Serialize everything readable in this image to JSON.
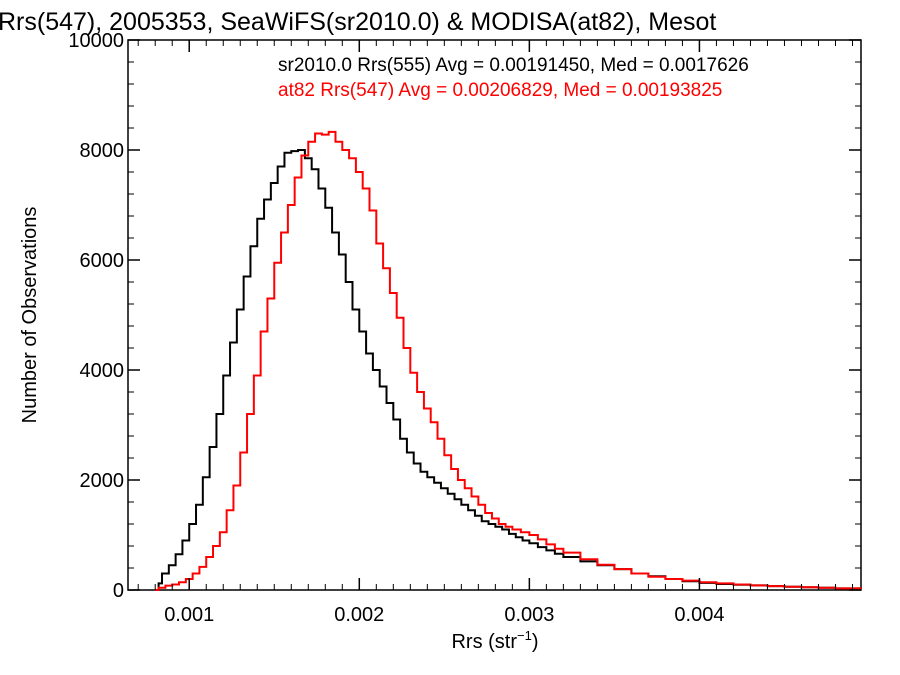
{
  "chart_data": {
    "type": "line",
    "title": "Rrs(547), 2005353, SeaWiFS(sr2010.0) & MODISA(at82), Mesot",
    "xlabel": "Rrs (str",
    "xlabel_sup": "−1",
    "xlabel_close": ")",
    "ylabel": "Number of Observations",
    "xlim": [
      0.00064,
      0.00495
    ],
    "ylim": [
      0,
      10000
    ],
    "x_ticks": [
      0.001,
      0.002,
      0.003,
      0.004
    ],
    "x_tick_labels": [
      "0.001",
      "0.002",
      "0.003",
      "0.004"
    ],
    "y_ticks": [
      0,
      2000,
      4000,
      6000,
      8000,
      10000
    ],
    "y_tick_labels": [
      "0",
      "2000",
      "4000",
      "6000",
      "8000",
      "10000"
    ],
    "grid": false,
    "series": [
      {
        "name": "sr2010.0",
        "label": "sr2010.0 Rrs(555) Avg = 0.00191450, Med = 0.0017626",
        "color": "#000000",
        "points": [
          [
            0.0008,
            0
          ],
          [
            0.00082,
            120
          ],
          [
            0.00084,
            300
          ],
          [
            0.00088,
            450
          ],
          [
            0.00092,
            650
          ],
          [
            0.00096,
            900
          ],
          [
            0.001,
            1200
          ],
          [
            0.00104,
            1550
          ],
          [
            0.00108,
            2050
          ],
          [
            0.00112,
            2600
          ],
          [
            0.00116,
            3200
          ],
          [
            0.0012,
            3900
          ],
          [
            0.00124,
            4500
          ],
          [
            0.00128,
            5100
          ],
          [
            0.00132,
            5700
          ],
          [
            0.00136,
            6250
          ],
          [
            0.0014,
            6750
          ],
          [
            0.00144,
            7100
          ],
          [
            0.00148,
            7400
          ],
          [
            0.00152,
            7700
          ],
          [
            0.00156,
            7950
          ],
          [
            0.0016,
            7980
          ],
          [
            0.00164,
            8000
          ],
          [
            0.00168,
            7850
          ],
          [
            0.00172,
            7650
          ],
          [
            0.00176,
            7300
          ],
          [
            0.0018,
            6950
          ],
          [
            0.00184,
            6500
          ],
          [
            0.00188,
            6100
          ],
          [
            0.00192,
            5600
          ],
          [
            0.00196,
            5100
          ],
          [
            0.002,
            4700
          ],
          [
            0.00204,
            4300
          ],
          [
            0.00208,
            4000
          ],
          [
            0.00212,
            3700
          ],
          [
            0.00216,
            3400
          ],
          [
            0.0022,
            3100
          ],
          [
            0.00224,
            2750
          ],
          [
            0.00228,
            2500
          ],
          [
            0.00232,
            2300
          ],
          [
            0.00236,
            2150
          ],
          [
            0.0024,
            2050
          ],
          [
            0.00244,
            1950
          ],
          [
            0.00248,
            1850
          ],
          [
            0.00252,
            1750
          ],
          [
            0.00256,
            1650
          ],
          [
            0.0026,
            1550
          ],
          [
            0.00264,
            1450
          ],
          [
            0.00268,
            1350
          ],
          [
            0.00272,
            1250
          ],
          [
            0.00276,
            1200
          ],
          [
            0.0028,
            1150
          ],
          [
            0.00284,
            1100
          ],
          [
            0.00288,
            1020
          ],
          [
            0.00292,
            960
          ],
          [
            0.00296,
            900
          ],
          [
            0.003,
            850
          ],
          [
            0.00305,
            780
          ],
          [
            0.0031,
            720
          ],
          [
            0.00315,
            660
          ],
          [
            0.0032,
            600
          ],
          [
            0.0033,
            520
          ],
          [
            0.0034,
            450
          ],
          [
            0.0035,
            380
          ],
          [
            0.0036,
            300
          ],
          [
            0.0037,
            250
          ],
          [
            0.0038,
            200
          ],
          [
            0.0039,
            160
          ],
          [
            0.004,
            130
          ],
          [
            0.0041,
            110
          ],
          [
            0.0042,
            95
          ],
          [
            0.0043,
            85
          ],
          [
            0.0044,
            70
          ],
          [
            0.0045,
            60
          ],
          [
            0.0046,
            50
          ],
          [
            0.0047,
            40
          ],
          [
            0.0048,
            30
          ],
          [
            0.00495,
            20
          ]
        ]
      },
      {
        "name": "at82",
        "label": "at82 Rrs(547) Avg = 0.00206829, Med = 0.00193825",
        "color": "#ff0000",
        "points": [
          [
            0.0008,
            0
          ],
          [
            0.00082,
            40
          ],
          [
            0.00086,
            80
          ],
          [
            0.0009,
            100
          ],
          [
            0.00094,
            140
          ],
          [
            0.00098,
            200
          ],
          [
            0.00102,
            300
          ],
          [
            0.00106,
            420
          ],
          [
            0.0011,
            600
          ],
          [
            0.00114,
            800
          ],
          [
            0.00118,
            1050
          ],
          [
            0.00122,
            1450
          ],
          [
            0.00126,
            1900
          ],
          [
            0.0013,
            2500
          ],
          [
            0.00134,
            3200
          ],
          [
            0.00138,
            3900
          ],
          [
            0.00142,
            4700
          ],
          [
            0.00146,
            5300
          ],
          [
            0.0015,
            5950
          ],
          [
            0.00154,
            6500
          ],
          [
            0.00158,
            7000
          ],
          [
            0.00162,
            7500
          ],
          [
            0.00166,
            7900
          ],
          [
            0.0017,
            8150
          ],
          [
            0.00174,
            8300
          ],
          [
            0.00178,
            8280
          ],
          [
            0.00182,
            8330
          ],
          [
            0.00186,
            8150
          ],
          [
            0.0019,
            8000
          ],
          [
            0.00194,
            7850
          ],
          [
            0.00198,
            7600
          ],
          [
            0.00202,
            7300
          ],
          [
            0.00206,
            6900
          ],
          [
            0.0021,
            6300
          ],
          [
            0.00214,
            5850
          ],
          [
            0.00218,
            5400
          ],
          [
            0.00222,
            4950
          ],
          [
            0.00226,
            4400
          ],
          [
            0.0023,
            3950
          ],
          [
            0.00234,
            3600
          ],
          [
            0.00238,
            3300
          ],
          [
            0.00242,
            3050
          ],
          [
            0.00246,
            2750
          ],
          [
            0.0025,
            2450
          ],
          [
            0.00254,
            2200
          ],
          [
            0.00258,
            2000
          ],
          [
            0.00262,
            1850
          ],
          [
            0.00266,
            1700
          ],
          [
            0.0027,
            1550
          ],
          [
            0.00274,
            1400
          ],
          [
            0.00278,
            1300
          ],
          [
            0.00282,
            1200
          ],
          [
            0.00286,
            1150
          ],
          [
            0.0029,
            1100
          ],
          [
            0.00295,
            1050
          ],
          [
            0.003,
            1000
          ],
          [
            0.00305,
            920
          ],
          [
            0.0031,
            830
          ],
          [
            0.00315,
            750
          ],
          [
            0.0032,
            680
          ],
          [
            0.0033,
            560
          ],
          [
            0.0034,
            460
          ],
          [
            0.0035,
            380
          ],
          [
            0.0036,
            300
          ],
          [
            0.0037,
            240
          ],
          [
            0.0038,
            200
          ],
          [
            0.0039,
            170
          ],
          [
            0.004,
            140
          ],
          [
            0.0041,
            120
          ],
          [
            0.0042,
            100
          ],
          [
            0.0043,
            85
          ],
          [
            0.0044,
            70
          ],
          [
            0.0045,
            60
          ],
          [
            0.0046,
            50
          ],
          [
            0.0047,
            40
          ],
          [
            0.0048,
            30
          ],
          [
            0.00495,
            20
          ]
        ]
      }
    ]
  }
}
